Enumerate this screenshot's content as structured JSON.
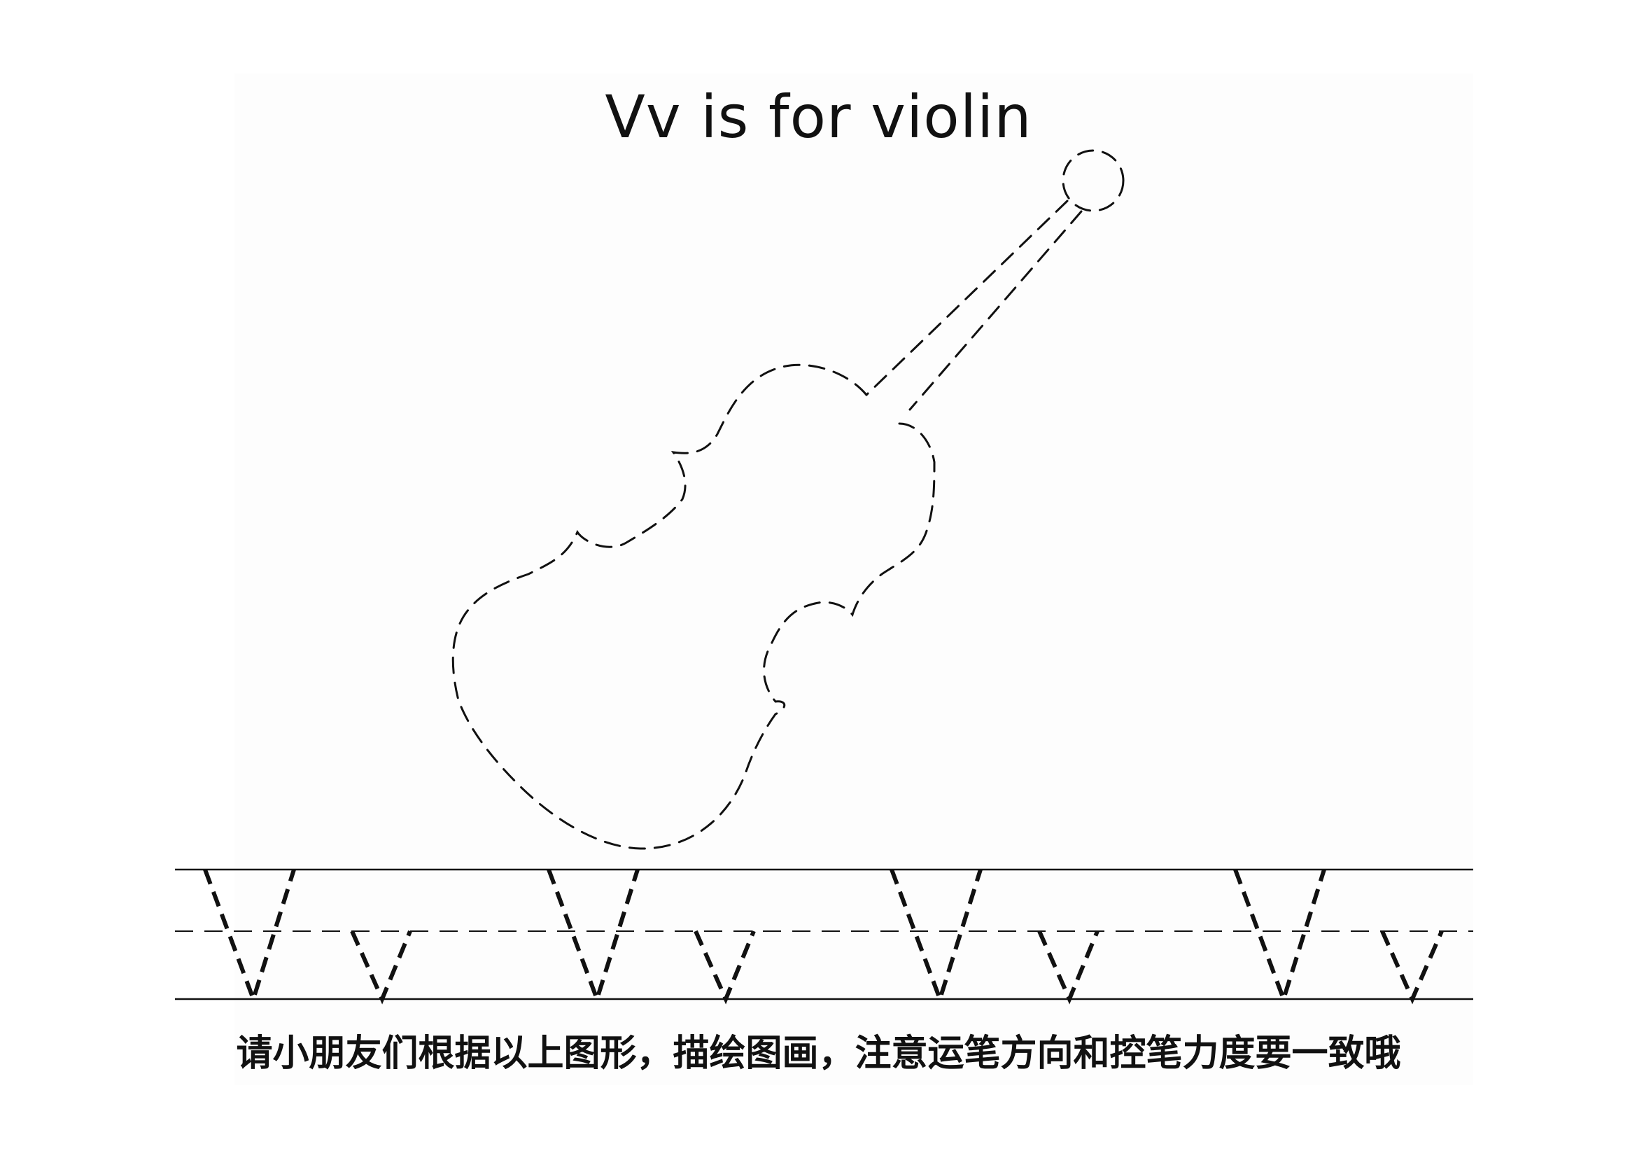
{
  "worksheet": {
    "title": "Vv is for violin",
    "instruction": "请小朋友们根据以上图形，描绘图画，注意运笔方向和控笔力度要一致哦"
  },
  "tracing_practice": {
    "letter_pairs": [
      {
        "upper": "V",
        "lower": "v"
      },
      {
        "upper": "V",
        "lower": "v"
      },
      {
        "upper": "V",
        "lower": "v"
      },
      {
        "upper": "V",
        "lower": "v"
      }
    ]
  },
  "picture": {
    "subject": "violin-outline",
    "style": "dashed-tracing"
  },
  "colors": {
    "ink": "#111111",
    "paper": "#ffffff"
  }
}
